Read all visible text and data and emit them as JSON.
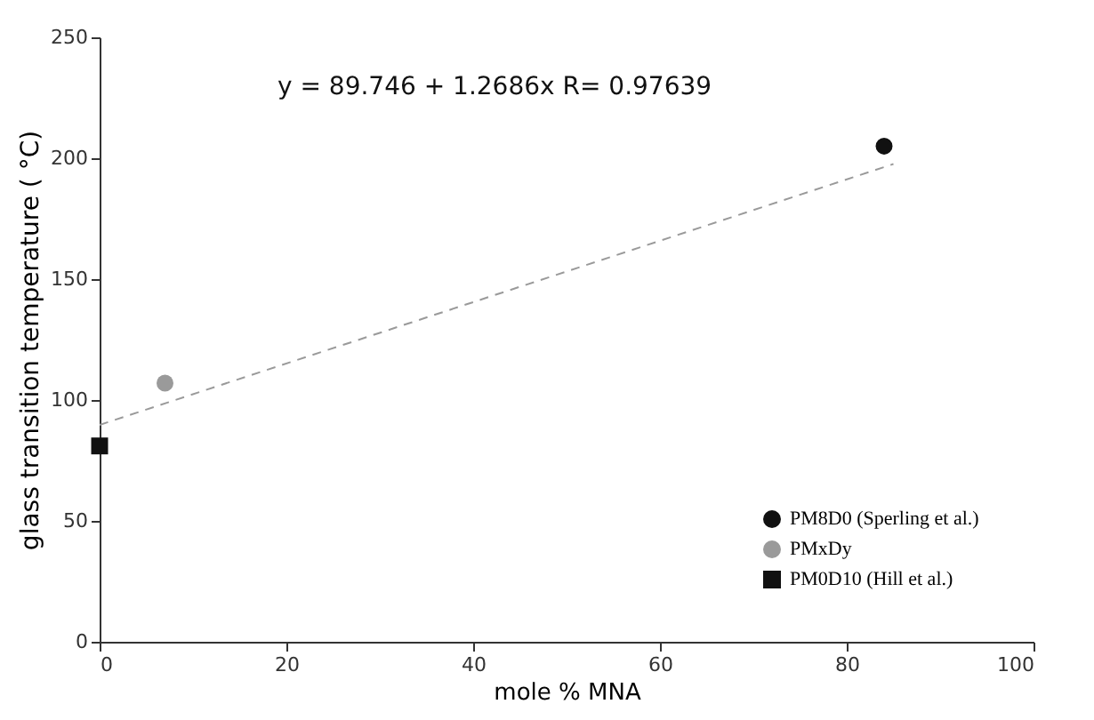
{
  "chart_data": {
    "type": "scatter",
    "xlabel": "mole % MNA",
    "ylabel": "glass transition temperature ( °C)",
    "annotations": [
      "y = 89.746 + 1.2686x R= 0.97639"
    ],
    "series": [
      {
        "name": "PM8D0 (Sperling et al.)",
        "color": "#111111",
        "marker": "circle",
        "x": [
          84
        ],
        "values": [
          205
        ]
      },
      {
        "name": "PMxDy",
        "color": "#9a9a9a",
        "marker": "circle",
        "x": [
          7
        ],
        "values": [
          107
        ]
      },
      {
        "name": "PM0D10 (Hill et al.)",
        "color": "#111111",
        "marker": "square",
        "x": [
          0
        ],
        "values": [
          81
        ]
      },
      {
        "type": "line",
        "color": "#9a9a9a",
        "line_style": "dashed",
        "x": [
          0,
          85
        ],
        "values": [
          89.7,
          197.6
        ]
      }
    ],
    "xlim": [
      0,
      100
    ],
    "xticks": [
      0,
      20,
      40,
      60,
      80,
      100
    ],
    "ylim": [
      0,
      250
    ],
    "yticks": [
      0,
      50,
      100,
      150,
      200,
      250
    ],
    "grid": false,
    "legend": "bottom right"
  }
}
